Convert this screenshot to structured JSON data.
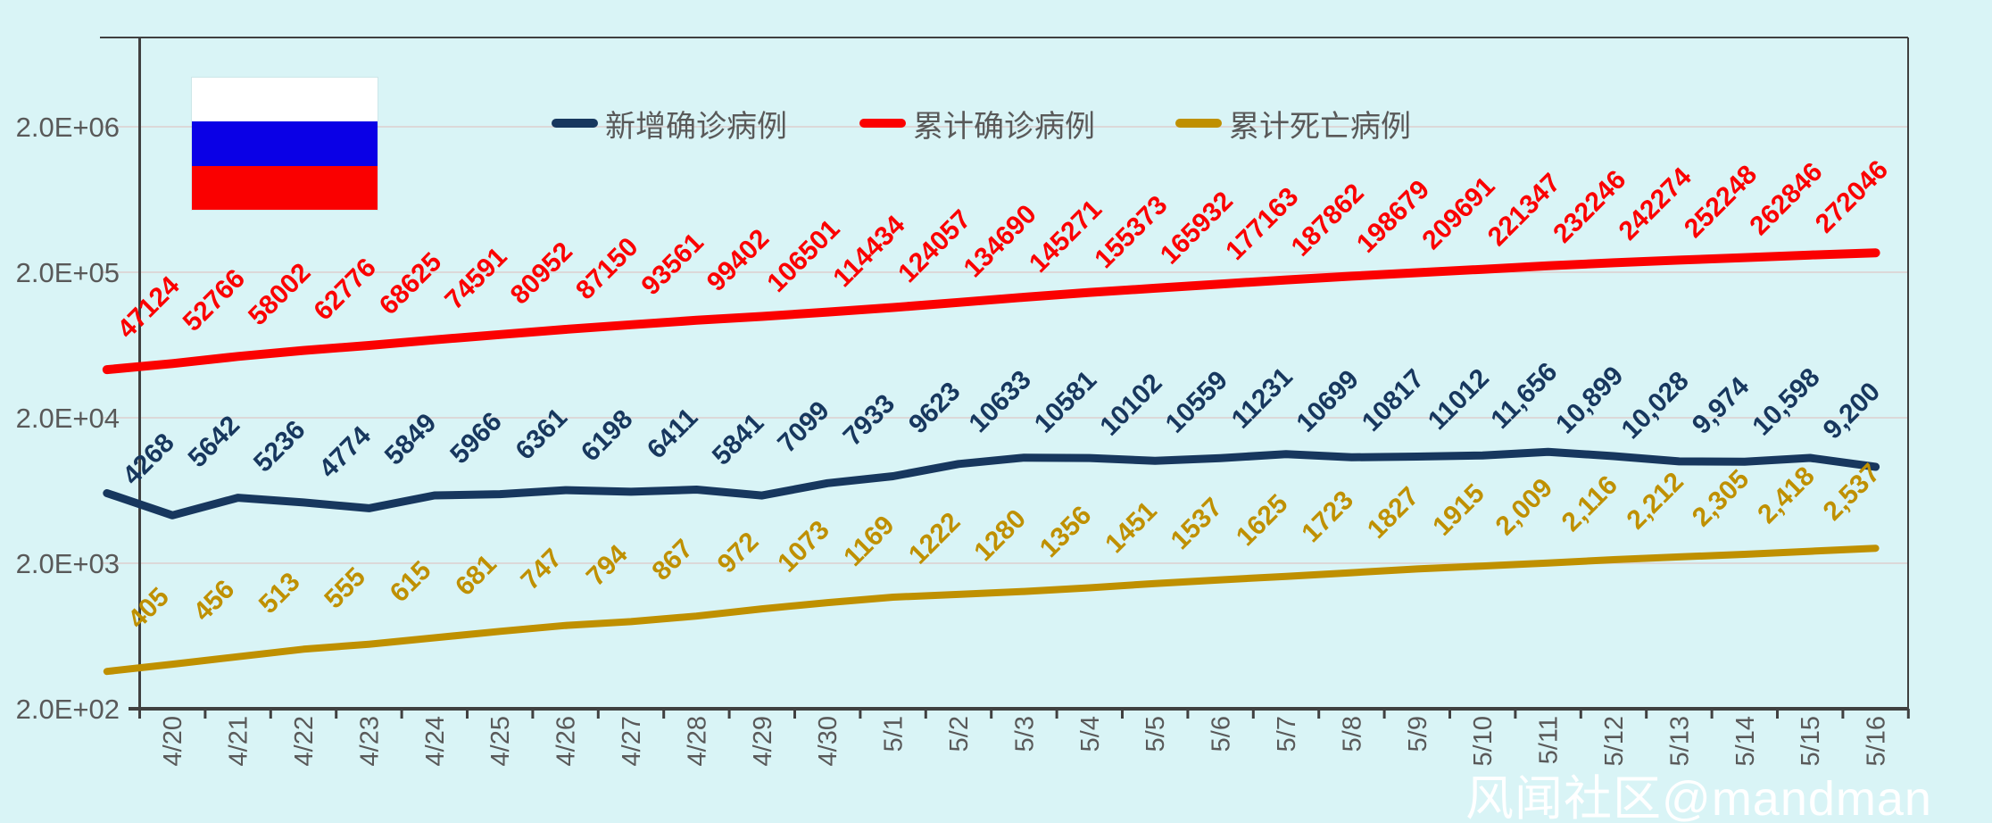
{
  "colors": {
    "background": "#D9F4F6",
    "grid": "#DCD8D8",
    "axis": "#404040",
    "tick_text": "#595959",
    "watermark_text": "#FFFFFF"
  },
  "flag": {
    "country": "russia",
    "stripes": [
      "#FFFFFF",
      "#0A00E6",
      "#FA0000"
    ]
  },
  "watermark": {
    "text": "风闻社区@mandman"
  },
  "chart_data": {
    "type": "line",
    "title": "",
    "grid": "on",
    "legend_position": "top",
    "x_categories": [
      "4/20",
      "4/21",
      "4/22",
      "4/23",
      "4/24",
      "4/25",
      "4/26",
      "4/27",
      "4/28",
      "4/29",
      "4/30",
      "5/1",
      "5/2",
      "5/3",
      "5/4",
      "5/5",
      "5/6",
      "5/7",
      "5/8",
      "5/9",
      "5/10",
      "5/11",
      "5/12",
      "5/13",
      "5/14",
      "5/15",
      "5/16"
    ],
    "y_axis": {
      "scale": "log",
      "tick_labels": [
        "2.0E+06",
        "2.0E+05",
        "2.0E+04",
        "2.0E+03",
        "2.0E+02"
      ],
      "tick_values": [
        2000000,
        200000,
        20000,
        2000,
        200
      ],
      "min": 200,
      "max": 2000000
    },
    "series": [
      {
        "key": "new-confirmed",
        "name": "新增确诊病例",
        "color": "#17375E",
        "values": [
          4268,
          5642,
          5236,
          4774,
          5849,
          5966,
          6361,
          6198,
          6411,
          5841,
          7099,
          7933,
          9623,
          10633,
          10581,
          10102,
          10559,
          11231,
          10699,
          10817,
          11012,
          11656,
          10899,
          10028,
          9974,
          10598,
          9200
        ],
        "labels": [
          "4268",
          "5642",
          "5236",
          "4774",
          "5849",
          "5966",
          "6361",
          "6198",
          "6411",
          "5841",
          "7099",
          "7933",
          "9623",
          "10633",
          "10581",
          "10102",
          "10559",
          "11231",
          "10699",
          "10817",
          "11012",
          "11,656",
          "10,899",
          "10,028",
          "9,974",
          "10,598",
          "9,200"
        ]
      },
      {
        "key": "cumulative-confirmed",
        "name": "累计确诊病例",
        "color": "#FB0000",
        "values": [
          47124,
          52766,
          58002,
          62776,
          68625,
          74591,
          80952,
          87150,
          93561,
          99402,
          106501,
          114434,
          124057,
          134690,
          145271,
          155373,
          165932,
          177163,
          187862,
          198679,
          209691,
          221347,
          232246,
          242274,
          252248,
          262846,
          272046
        ],
        "labels": [
          "47124",
          "52766",
          "58002",
          "62776",
          "68625",
          "74591",
          "80952",
          "87150",
          "93561",
          "99402",
          "106501",
          "114434",
          "124057",
          "134690",
          "145271",
          "155373",
          "165932",
          "177163",
          "187862",
          "198679",
          "209691",
          "221347",
          "232246",
          "242274",
          "252248",
          "262846",
          "272046"
        ]
      },
      {
        "key": "cumulative-deaths",
        "name": "累计死亡病例",
        "color": "#BF9000",
        "values": [
          405,
          456,
          513,
          555,
          615,
          681,
          747,
          794,
          867,
          972,
          1073,
          1169,
          1222,
          1280,
          1356,
          1451,
          1537,
          1625,
          1723,
          1827,
          1915,
          2009,
          2116,
          2212,
          2305,
          2418,
          2537
        ],
        "labels": [
          "405",
          "456",
          "513",
          "555",
          "615",
          "681",
          "747",
          "794",
          "867",
          "972",
          "1073",
          "1169",
          "1222",
          "1280",
          "1356",
          "1451",
          "1537",
          "1625",
          "1723",
          "1827",
          "1915",
          "2,009",
          "2,116",
          "2,212",
          "2,305",
          "2,418",
          "2,537"
        ]
      }
    ],
    "lead_in_estimated": {
      "note": "each line enters from the left plot edge with a short unlabeled segment (day before 4/20); values estimated from line position",
      "values": [
        6060,
        42853,
        361
      ]
    }
  }
}
